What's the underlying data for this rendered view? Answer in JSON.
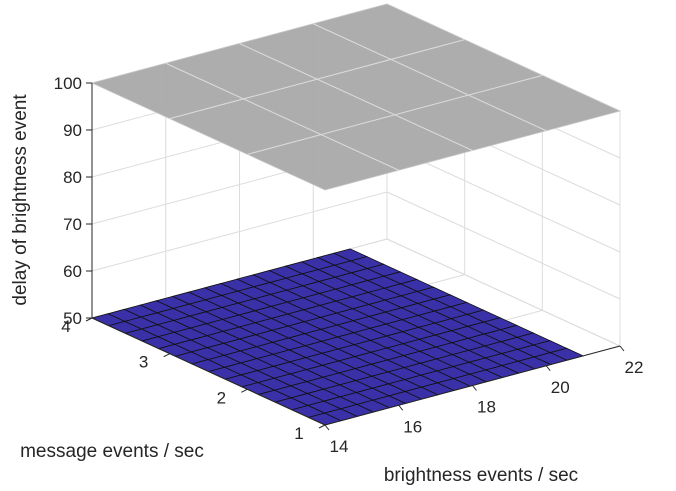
{
  "chart_data": {
    "type": "surface",
    "title": "",
    "xlabel": "brightness events / sec",
    "ylabel": "message events / sec",
    "zlabel": "delay of brightness event",
    "xlim": [
      14,
      22
    ],
    "ylim": [
      1,
      4
    ],
    "zlim": [
      50,
      100
    ],
    "x_ticks": [
      14,
      16,
      18,
      20,
      22
    ],
    "y_ticks": [
      1,
      2,
      3,
      4
    ],
    "z_ticks": [
      50,
      60,
      70,
      80,
      90,
      100
    ],
    "grid": true,
    "series": [
      {
        "surface": "bottom",
        "z_value": 50,
        "color": "#3a31a8",
        "x_range": [
          14,
          21
        ],
        "y_range": [
          1,
          4
        ],
        "grid_cells": [
          16,
          14
        ]
      },
      {
        "surface": "top",
        "z_value": 100,
        "color": "#a9a9a9",
        "x_range": [
          14,
          22
        ],
        "y_range": [
          1,
          4
        ]
      }
    ]
  }
}
